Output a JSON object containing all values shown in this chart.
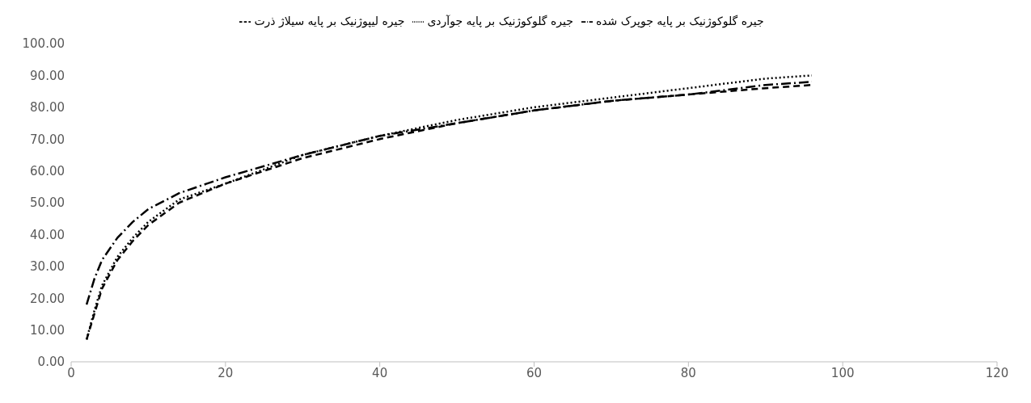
{
  "chart_data": {
    "type": "line",
    "x": [
      2,
      3,
      4,
      6,
      8,
      10,
      14,
      20,
      30,
      40,
      50,
      60,
      70,
      80,
      90,
      96
    ],
    "series": [
      {
        "name": "جیره گلوکوژنیک بر پایه جوآردی",
        "color": "#000000",
        "line_style": "dotted",
        "values": [
          7,
          16,
          24,
          33,
          39,
          44,
          51,
          56,
          65,
          71,
          76,
          80,
          83,
          86,
          89,
          90
        ]
      },
      {
        "name": "جیره گلوکوژنیک بر پایه جوپرک شده",
        "color": "#000000",
        "line_style": "dashdot",
        "values": [
          18,
          26,
          32,
          39,
          44,
          48,
          53,
          58,
          65,
          71,
          75,
          79,
          82,
          84,
          87,
          88
        ]
      },
      {
        "name": "جیره لیپوژنیک بر پایه سیلاژ ذرت",
        "color": "#000000",
        "line_style": "dashed",
        "values": [
          7,
          15,
          23,
          32,
          38,
          43,
          50,
          56,
          64,
          70,
          75,
          79,
          82,
          84,
          86,
          87
        ]
      }
    ],
    "xlim": [
      0,
      120
    ],
    "xticks": [
      0,
      20,
      40,
      60,
      80,
      100,
      120
    ],
    "ylim": [
      0,
      100
    ],
    "yticks": [
      {
        "value": 0,
        "label": "0.00"
      },
      {
        "value": 10,
        "label": "10.00"
      },
      {
        "value": 20,
        "label": "20.00"
      },
      {
        "value": 30,
        "label": "30.00"
      },
      {
        "value": 40,
        "label": "40.00"
      },
      {
        "value": 50,
        "label": "50.00"
      },
      {
        "value": 60,
        "label": "60.00"
      },
      {
        "value": 70,
        "label": "70.00"
      },
      {
        "value": 80,
        "label": "80.00"
      },
      {
        "value": 90,
        "label": "90.00"
      },
      {
        "value": 100,
        "label": "100.00"
      }
    ],
    "grid": false,
    "legend": "top",
    "marker": "none"
  }
}
